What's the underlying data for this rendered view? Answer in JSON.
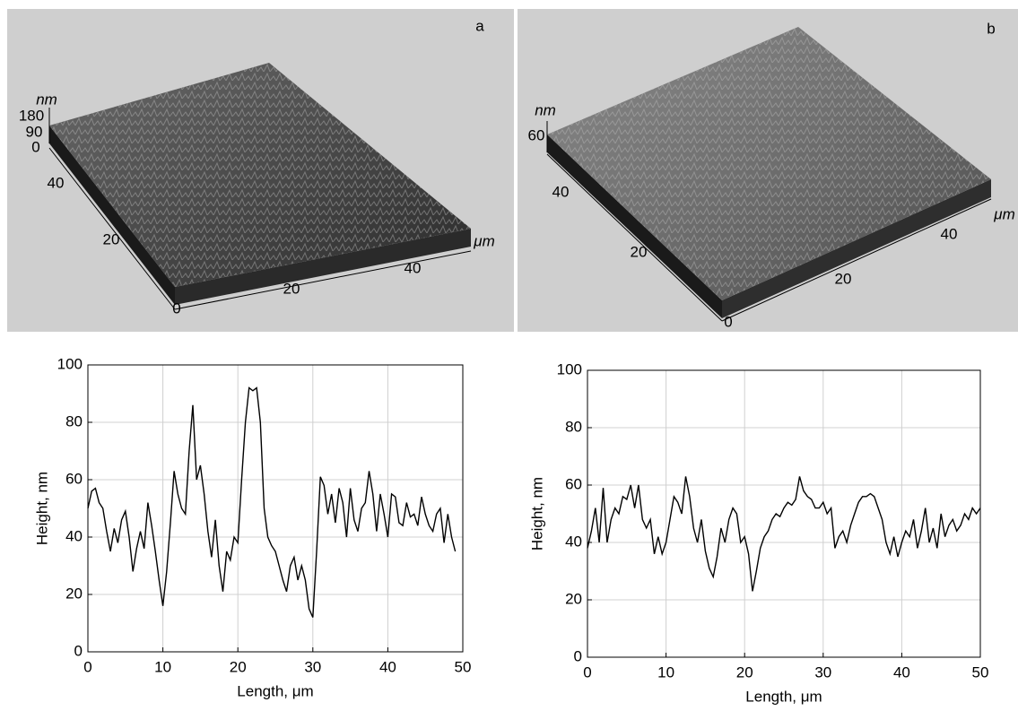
{
  "panels": [
    {
      "label": "a",
      "axis_labels": [
        "nm",
        "180",
        "90",
        "0",
        "40",
        "20",
        "0",
        "20",
        "40",
        "μm"
      ]
    },
    {
      "label": "b",
      "axis_labels": [
        "nm",
        "60",
        "40",
        "20",
        "0",
        "20",
        "40",
        "μm"
      ]
    }
  ],
  "chart_data": [
    {
      "type": "line",
      "xlabel": "Length, μm",
      "ylabel": "Height, nm",
      "color": "#000000",
      "grid": true,
      "xlim": [
        0,
        50
      ],
      "xticks": [
        0,
        10,
        20,
        30,
        40,
        50
      ],
      "ylim": [
        0,
        100
      ],
      "yticks": [
        0,
        20,
        40,
        60,
        80,
        100
      ],
      "x": [
        0,
        0.5,
        1,
        1.5,
        2,
        2.5,
        3,
        3.5,
        4,
        4.5,
        5,
        5.5,
        6,
        6.5,
        7,
        7.5,
        8,
        8.5,
        9,
        9.5,
        10,
        10.5,
        11,
        11.5,
        12,
        12.5,
        13,
        13.5,
        14,
        14.5,
        15,
        15.5,
        16,
        16.5,
        17,
        17.5,
        18,
        18.5,
        19,
        19.5,
        20,
        20.5,
        21,
        21.5,
        22,
        22.5,
        23,
        23.5,
        24,
        24.5,
        25,
        25.5,
        26,
        26.5,
        27,
        27.5,
        28,
        28.5,
        29,
        29.5,
        30,
        30.5,
        31,
        31.5,
        32,
        32.5,
        33,
        33.5,
        34,
        34.5,
        35,
        35.5,
        36,
        36.5,
        37,
        37.5,
        38,
        38.5,
        39,
        39.5,
        40,
        40.5,
        41,
        41.5,
        42,
        42.5,
        43,
        43.5,
        44,
        44.5,
        45,
        45.5,
        46,
        46.5,
        47,
        47.5,
        48,
        48.5,
        49
      ],
      "values": [
        50,
        56,
        57,
        52,
        50,
        42,
        35,
        43,
        38,
        46,
        49,
        40,
        28,
        36,
        42,
        36,
        52,
        44,
        35,
        25,
        16,
        28,
        45,
        63,
        55,
        50,
        48,
        70,
        86,
        60,
        65,
        55,
        42,
        33,
        46,
        30,
        21,
        35,
        32,
        40,
        38,
        60,
        80,
        92,
        91,
        92,
        80,
        50,
        40,
        37,
        35,
        30,
        25,
        21,
        30,
        33,
        25,
        30,
        25,
        15,
        12,
        35,
        61,
        58,
        48,
        55,
        45,
        57,
        52,
        40,
        57,
        46,
        42,
        50,
        52,
        63,
        55,
        42,
        55,
        48,
        40,
        55,
        54,
        45,
        44,
        52,
        47,
        48,
        44,
        54,
        48,
        44,
        42,
        48,
        50,
        38,
        48,
        40,
        35
      ]
    },
    {
      "type": "line",
      "xlabel": "Length, μm",
      "ylabel": "Height, nm",
      "color": "#000000",
      "grid": true,
      "xlim": [
        0,
        50
      ],
      "xticks": [
        0,
        10,
        20,
        30,
        40,
        50
      ],
      "ylim": [
        0,
        100
      ],
      "yticks": [
        0,
        20,
        40,
        60,
        80,
        100
      ],
      "x": [
        0,
        0.5,
        1,
        1.5,
        2,
        2.5,
        3,
        3.5,
        4,
        4.5,
        5,
        5.5,
        6,
        6.5,
        7,
        7.5,
        8,
        8.5,
        9,
        9.5,
        10,
        10.5,
        11,
        11.5,
        12,
        12.5,
        13,
        13.5,
        14,
        14.5,
        15,
        15.5,
        16,
        16.5,
        17,
        17.5,
        18,
        18.5,
        19,
        19.5,
        20,
        20.5,
        21,
        21.5,
        22,
        22.5,
        23,
        23.5,
        24,
        24.5,
        25,
        25.5,
        26,
        26.5,
        27,
        27.5,
        28,
        28.5,
        29,
        29.5,
        30,
        30.5,
        31,
        31.5,
        32,
        32.5,
        33,
        33.5,
        34,
        34.5,
        35,
        35.5,
        36,
        36.5,
        37,
        37.5,
        38,
        38.5,
        39,
        39.5,
        40,
        40.5,
        41,
        41.5,
        42,
        42.5,
        43,
        43.5,
        44,
        44.5,
        45,
        45.5,
        46,
        46.5,
        47,
        47.5,
        48,
        48.5,
        49,
        49.5,
        50
      ],
      "values": [
        38,
        44,
        52,
        40,
        59,
        40,
        48,
        52,
        50,
        56,
        55,
        60,
        52,
        60,
        48,
        45,
        48,
        36,
        42,
        36,
        40,
        48,
        56,
        54,
        50,
        63,
        56,
        45,
        40,
        48,
        37,
        31,
        28,
        35,
        45,
        40,
        48,
        52,
        50,
        40,
        42,
        36,
        23,
        30,
        38,
        42,
        44,
        48,
        50,
        49,
        52,
        54,
        53,
        55,
        63,
        58,
        56,
        55,
        52,
        52,
        54,
        50,
        52,
        38,
        42,
        44,
        40,
        46,
        50,
        54,
        56,
        56,
        57,
        56,
        52,
        48,
        40,
        36,
        42,
        35,
        40,
        44,
        42,
        48,
        38,
        44,
        52,
        40,
        45,
        38,
        50,
        42,
        46,
        48,
        44,
        46,
        50,
        48,
        52,
        50,
        52
      ]
    }
  ]
}
